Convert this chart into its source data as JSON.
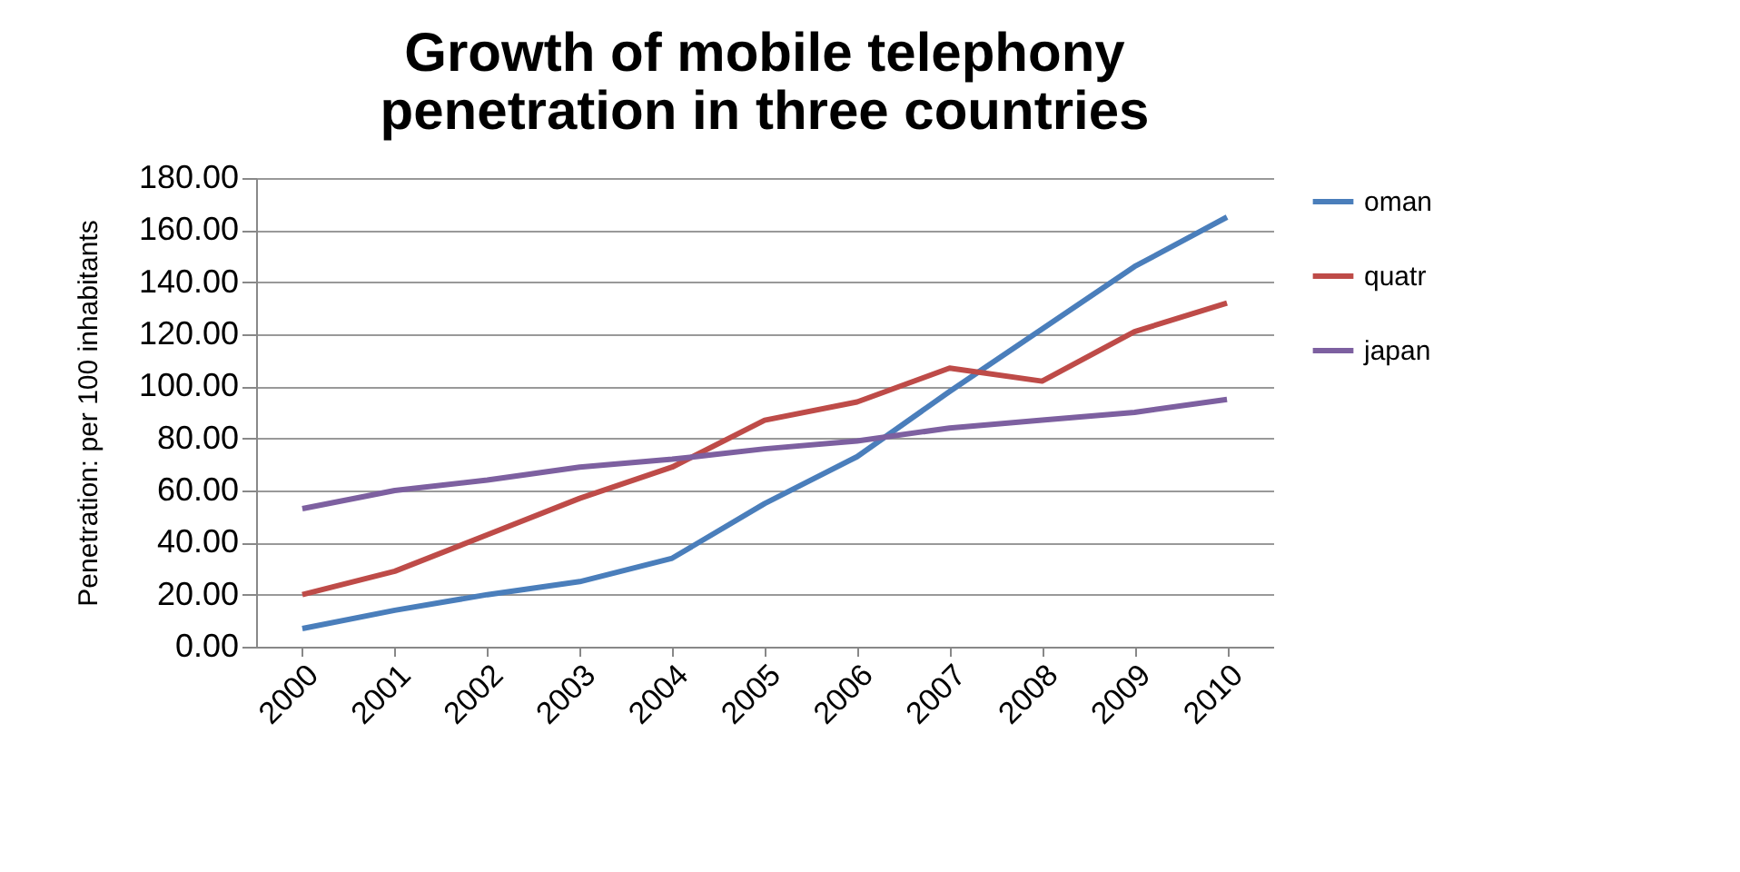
{
  "chart_data": {
    "type": "line",
    "title": "Growth of mobile telephony penetration in three countries",
    "ylabel": "Penetration: per 100 inhabitants",
    "categories": [
      "2000",
      "2001",
      "2002",
      "2003",
      "2004",
      "2005",
      "2006",
      "2007",
      "2008",
      "2009",
      "2010"
    ],
    "series": [
      {
        "name": "oman",
        "color": "#4a7ebb",
        "values": [
          7,
          14,
          20,
          25,
          34,
          55,
          73,
          98,
          122,
          146,
          165
        ]
      },
      {
        "name": "quatr",
        "color": "#be4b48",
        "values": [
          20,
          29,
          43,
          57,
          69,
          87,
          94,
          107,
          102,
          121,
          132
        ]
      },
      {
        "name": "japan",
        "color": "#7d60a0",
        "values": [
          53,
          60,
          64,
          69,
          72,
          76,
          79,
          84,
          87,
          90,
          95
        ]
      }
    ],
    "ylim": [
      0,
      180
    ],
    "yticks": [
      {
        "value": 0,
        "label": "0.00"
      },
      {
        "value": 20,
        "label": "20.00"
      },
      {
        "value": 40,
        "label": "40.00"
      },
      {
        "value": 60,
        "label": "60.00"
      },
      {
        "value": 80,
        "label": "80.00"
      },
      {
        "value": 100,
        "label": "100.00"
      },
      {
        "value": 120,
        "label": "120.00"
      },
      {
        "value": 140,
        "label": "140.00"
      },
      {
        "value": 160,
        "label": "160.00"
      },
      {
        "value": 180,
        "label": "180.00"
      }
    ],
    "grid": "y",
    "legend": "right",
    "marker": "none",
    "line_style": "solid"
  }
}
